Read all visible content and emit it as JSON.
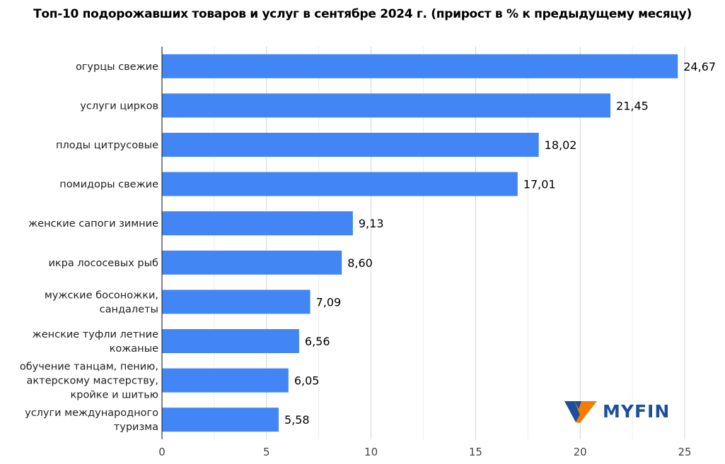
{
  "chart_data": {
    "type": "bar",
    "orientation": "horizontal",
    "title": "Топ-10 подорожавших товаров и услуг в сентябре 2024 г. (прирост в % к предыдущему месяцу)",
    "categories": [
      [
        "огурцы свежие"
      ],
      [
        "услуги цирков"
      ],
      [
        "плоды цитрусовые"
      ],
      [
        "помидоры свежие"
      ],
      [
        "женские сапоги зимние"
      ],
      [
        "икра лососевых рыб"
      ],
      [
        "мужские босоножки,",
        "сандалеты"
      ],
      [
        "женские туфли летние",
        "кожаные"
      ],
      [
        "обучение танцам, пению,",
        "актерскому мастерству,",
        "кройке и шитью"
      ],
      [
        "услуги международного",
        "туризма"
      ]
    ],
    "values": [
      24.67,
      21.45,
      18.02,
      17.01,
      9.13,
      8.6,
      7.09,
      6.56,
      6.05,
      5.58
    ],
    "value_labels": [
      "24,67",
      "21,45",
      "18,02",
      "17,01",
      "9,13",
      "8,60",
      "7,09",
      "6,56",
      "6,05",
      "5,58"
    ],
    "xlim": [
      0,
      25
    ],
    "xticks": [
      0,
      5,
      10,
      15,
      20,
      25
    ],
    "grid": true,
    "bar_color": "#4285f4"
  },
  "logo": {
    "text": "MYFIN",
    "colors": [
      "#1e4f9c",
      "#f57c00"
    ]
  }
}
